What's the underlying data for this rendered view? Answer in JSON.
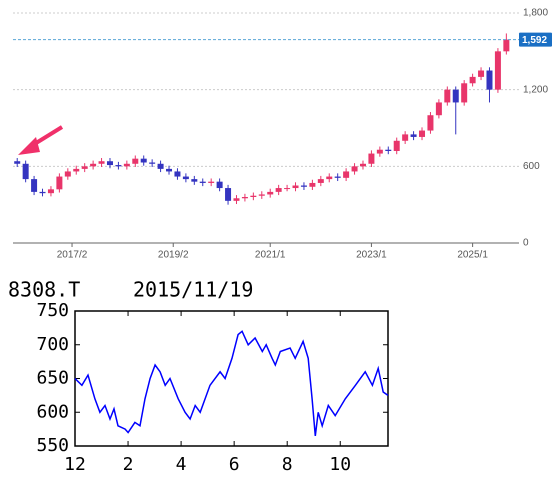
{
  "chart_data": [
    {
      "type": "candlestick",
      "open": [
        640,
        620,
        500,
        400,
        390,
        420,
        520,
        560,
        580,
        600,
        620,
        640,
        610,
        600,
        620,
        660,
        630,
        620,
        580,
        560,
        520,
        500,
        480,
        470,
        480,
        430,
        330,
        350,
        360,
        370,
        380,
        400,
        430,
        430,
        450,
        440,
        470,
        500,
        520,
        510,
        560,
        600,
        620,
        700,
        730,
        720,
        800,
        850,
        830,
        880,
        1000,
        1100,
        1200,
        1100,
        1250,
        1300,
        1350,
        1200,
        1500
      ],
      "high": [
        665,
        645,
        525,
        425,
        445,
        545,
        585,
        605,
        625,
        645,
        665,
        665,
        635,
        645,
        685,
        685,
        655,
        645,
        605,
        585,
        545,
        525,
        505,
        505,
        505,
        455,
        375,
        385,
        395,
        405,
        425,
        455,
        455,
        475,
        475,
        495,
        525,
        545,
        545,
        585,
        625,
        645,
        725,
        755,
        755,
        825,
        875,
        875,
        905,
        1025,
        1125,
        1225,
        1225,
        1275,
        1325,
        1375,
        1375,
        1525,
        1640
      ],
      "low": [
        595,
        475,
        375,
        365,
        365,
        395,
        495,
        535,
        555,
        575,
        595,
        585,
        575,
        575,
        595,
        605,
        595,
        555,
        535,
        495,
        475,
        455,
        445,
        445,
        405,
        300,
        305,
        325,
        335,
        345,
        355,
        375,
        405,
        405,
        415,
        415,
        445,
        475,
        485,
        485,
        535,
        575,
        595,
        675,
        695,
        695,
        775,
        805,
        805,
        855,
        975,
        1075,
        850,
        1075,
        1225,
        1275,
        1100,
        1175,
        1475
      ],
      "close": [
        620,
        500,
        400,
        390,
        420,
        520,
        560,
        580,
        600,
        620,
        640,
        610,
        600,
        620,
        660,
        630,
        620,
        580,
        560,
        520,
        500,
        480,
        470,
        480,
        430,
        330,
        350,
        360,
        370,
        380,
        400,
        430,
        430,
        450,
        440,
        470,
        500,
        520,
        510,
        560,
        600,
        620,
        700,
        730,
        720,
        800,
        850,
        830,
        880,
        1000,
        1100,
        1200,
        1100,
        1250,
        1300,
        1350,
        1200,
        1500,
        1592
      ],
      "up_color": "#e8356a",
      "down_color": "#3434c0",
      "xlim": [
        -0.5,
        59.5
      ],
      "xticks": [
        {
          "value": 6.5,
          "label": "2017/2"
        },
        {
          "value": 18.5,
          "label": "2019/2"
        },
        {
          "value": 30,
          "label": "2021/1"
        },
        {
          "value": 42,
          "label": "2023/1"
        },
        {
          "value": 54,
          "label": "2025/1"
        }
      ],
      "ylim": [
        0,
        1800
      ],
      "yticks": [
        0,
        600,
        {
          "value": 1200,
          "label": "1,200"
        },
        {
          "value": 1800,
          "label": "1,800"
        }
      ],
      "grid": true,
      "last_price": 1592,
      "last_price_label": "1,592"
    },
    {
      "type": "line",
      "title": "8308.T",
      "subtitle": "2015/11/19",
      "color": "#0000ff",
      "x": [
        0,
        0.26,
        0.49,
        0.75,
        0.94,
        1.13,
        1.32,
        1.47,
        1.62,
        1.89,
        2.0,
        2.26,
        2.45,
        2.64,
        2.83,
        3.02,
        3.21,
        3.4,
        3.58,
        3.89,
        4.15,
        4.34,
        4.53,
        4.72,
        5.09,
        5.47,
        5.66,
        5.92,
        6.15,
        6.3,
        6.53,
        6.79,
        7.06,
        7.21,
        7.43,
        7.55,
        7.74,
        8.11,
        8.3,
        8.6,
        8.79,
        8.94,
        9.06,
        9.17,
        9.32,
        9.55,
        9.81,
        10.19,
        10.57,
        10.94,
        11.21,
        11.43,
        11.62,
        11.8
      ],
      "values": [
        650,
        640,
        655,
        620,
        600,
        610,
        590,
        605,
        580,
        575,
        570,
        585,
        580,
        620,
        650,
        670,
        660,
        640,
        650,
        620,
        600,
        590,
        610,
        600,
        640,
        660,
        650,
        680,
        715,
        720,
        700,
        710,
        690,
        700,
        680,
        670,
        690,
        695,
        680,
        705,
        680,
        620,
        565,
        600,
        580,
        610,
        595,
        620,
        640,
        660,
        640,
        665,
        630,
        625
      ],
      "xlim": [
        0,
        11.8
      ],
      "xticks": [
        {
          "value": 0,
          "label": "12"
        },
        2,
        4,
        6,
        8,
        10
      ],
      "ylim": [
        550,
        750
      ],
      "yticks": [
        550,
        600,
        650,
        700,
        750
      ]
    }
  ]
}
